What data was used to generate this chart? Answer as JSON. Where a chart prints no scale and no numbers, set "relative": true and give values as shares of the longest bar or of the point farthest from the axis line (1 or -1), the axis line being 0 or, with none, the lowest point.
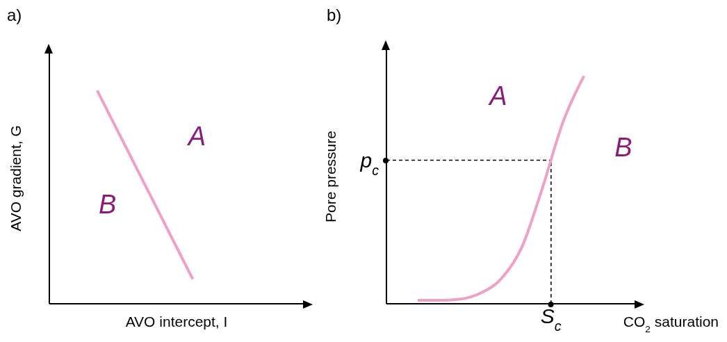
{
  "chart_data": [
    {
      "type": "line",
      "title": "a)",
      "xlabel": "AVO intercept, I",
      "ylabel": "AVO gradient, G",
      "relative": true,
      "categories": [
        null,
        null,
        null,
        null,
        null,
        null,
        null,
        null
      ],
      "series": [
        {
          "color": "#f0a0c8",
          "values": [
            null,
            1,
            0.705,
            0.41,
            0.115,
            null,
            null,
            null
          ]
        }
      ],
      "annotations": [
        "A",
        "B"
      ],
      "marker": "none",
      "grid": false,
      "legend": false
    },
    {
      "type": "line",
      "title": "b)",
      "xlabel": "CO$_{2}$ saturation",
      "ylabel": "Pore pressure",
      "relative": true,
      "categories": [
        null,
        null,
        null,
        null,
        null,
        null,
        null,
        null,
        null,
        null,
        null,
        null
      ],
      "series": [
        {
          "color": "#f0a0c8",
          "values": [
            null,
            0.015,
            0.015,
            0.02,
            0.046,
            0.108,
            0.246,
            0.508,
            0.8,
            1.0,
            null,
            null
          ]
        }
      ],
      "ref_lines": [
        {
          "axis": "y",
          "value": 0.63,
          "label": "p$_{c}$",
          "line_style": "dashed",
          "color": "#000000"
        }
      ],
      "annotations": [
        "A",
        "B",
        "S$_{c}$"
      ],
      "marker": "none",
      "grid": false,
      "legend": false
    }
  ]
}
